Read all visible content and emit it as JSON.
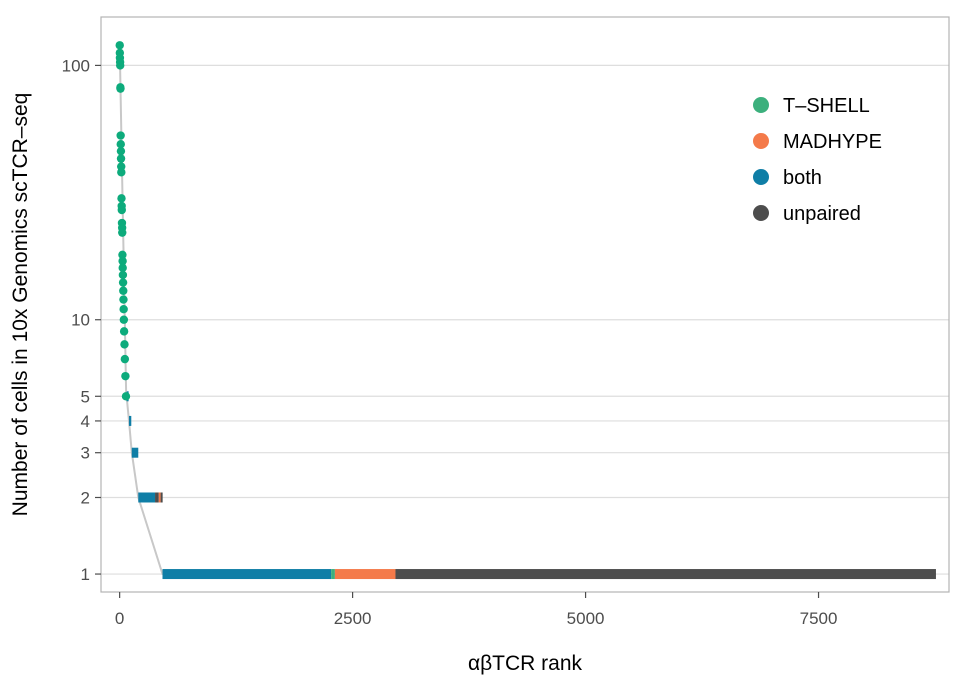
{
  "chart_data": {
    "type": "scatter",
    "xlabel": "αβTCR rank",
    "ylabel": "Number of cells in 10x Genomics scTCR–seq",
    "xlim": [
      -200,
      8900
    ],
    "ylim": [
      0.85,
      155
    ],
    "yscale": "log",
    "grid": true,
    "legend_position": "top-right",
    "x_ticks": [
      0,
      2500,
      5000,
      7500
    ],
    "x_tick_labels": [
      "0",
      "2500",
      "5000",
      "7500"
    ],
    "y_ticks": [
      1,
      2,
      3,
      4,
      5,
      10,
      100
    ],
    "y_tick_labels": [
      "1",
      "2",
      "3",
      "4",
      "5",
      "10",
      "100"
    ],
    "legend": [
      {
        "name": "T–SHELL",
        "color": "#3cb07d"
      },
      {
        "name": "MADHYPE",
        "color": "#f47a4a"
      },
      {
        "name": "both",
        "color": "#0f7ea6"
      },
      {
        "name": "unpaired",
        "color": "#4d4d4d"
      }
    ],
    "points": {
      "color": "#0dab7c",
      "x": [
        1,
        2,
        3,
        5,
        6,
        8,
        9,
        11,
        12,
        14,
        15,
        17,
        18,
        20,
        22,
        23,
        25,
        27,
        28,
        30,
        32,
        33,
        35,
        37,
        39,
        41,
        43,
        45,
        48,
        52,
        56,
        62,
        68
      ],
      "y": [
        120,
        112,
        107,
        103,
        100,
        82,
        81,
        53,
        49,
        46,
        43,
        40,
        38,
        30,
        28,
        27,
        24,
        23,
        22,
        18,
        17,
        16,
        15,
        14,
        13,
        12,
        11,
        10,
        9,
        8,
        7,
        6,
        5
      ]
    },
    "segments": [
      {
        "y": 5,
        "x_start": 75,
        "x_end": 90,
        "group": "both"
      },
      {
        "y": 4,
        "x_start": 100,
        "x_end": 125,
        "group": "both"
      },
      {
        "y": 3,
        "x_start": 130,
        "x_end": 200,
        "group": "both"
      },
      {
        "y": 2,
        "x_start": 200,
        "x_end": 380,
        "group": "both"
      },
      {
        "y": 2,
        "x_start": 380,
        "x_end": 420,
        "group": "unpaired"
      },
      {
        "y": 2,
        "x_start": 420,
        "x_end": 440,
        "group": "MADHYPE"
      },
      {
        "y": 2,
        "x_start": 440,
        "x_end": 460,
        "group": "unpaired"
      },
      {
        "y": 1,
        "x_start": 460,
        "x_end": 2270,
        "group": "both"
      },
      {
        "y": 1,
        "x_start": 2270,
        "x_end": 2310,
        "group": "T–SHELL"
      },
      {
        "y": 1,
        "x_start": 2310,
        "x_end": 2960,
        "group": "MADHYPE"
      },
      {
        "y": 1,
        "x_start": 2960,
        "x_end": 8760,
        "group": "unpaired"
      }
    ],
    "step_line": {
      "color": "#c8c8c8",
      "x": [
        1,
        70,
        75,
        100,
        130,
        200,
        460,
        8760
      ],
      "y": [
        120,
        5,
        5,
        4,
        3,
        2,
        1,
        1
      ]
    }
  }
}
